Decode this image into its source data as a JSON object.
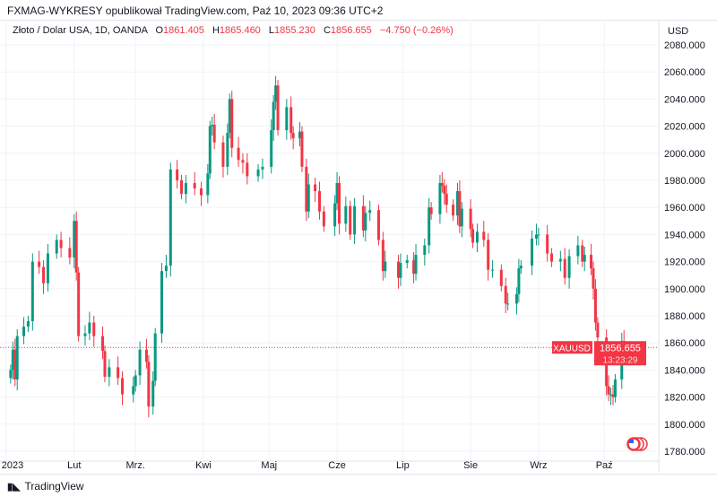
{
  "header": {
    "published": "FXMAG-WYKRESY opublikował TradingView.com, Paź 10, 2023 09:36 UTC+2"
  },
  "legend": {
    "symbol": "Złoto / Dolar USA, 1D, OANDA",
    "o_label": "O",
    "o": "1861.405",
    "h_label": "H",
    "h": "1865.460",
    "l_label": "L",
    "l": "1855.230",
    "c_label": "C",
    "c": "1856.655",
    "change": "−4.750 (−0.26%)"
  },
  "footer": {
    "brand": "TradingView"
  },
  "colors": {
    "up": "#089981",
    "down": "#f23645",
    "grid": "#f0f3fa",
    "text": "#131722"
  },
  "chart_data": {
    "type": "candlestick",
    "currency": "USD",
    "ylim": [
      1780,
      2080
    ],
    "yticks": [
      "2080.000",
      "2060.000",
      "2040.000",
      "2020.000",
      "2000.000",
      "1980.000",
      "1960.000",
      "1940.000",
      "1920.000",
      "1900.000",
      "1880.000",
      "1860.000",
      "1840.000",
      "1820.000",
      "1800.000",
      "1780.000"
    ],
    "xticks": [
      {
        "label": "2023",
        "date": "2023-01-01"
      },
      {
        "label": "Lut",
        "date": "2023-02-01"
      },
      {
        "label": "Mrz.",
        "date": "2023-03-01"
      },
      {
        "label": "Kwi",
        "date": "2023-04-01"
      },
      {
        "label": "Maj",
        "date": "2023-05-01"
      },
      {
        "label": "Cze",
        "date": "2023-06-01"
      },
      {
        "label": "Lip",
        "date": "2023-07-01"
      },
      {
        "label": "Sie",
        "date": "2023-08-01"
      },
      {
        "label": "Wrz",
        "date": "2023-09-01"
      },
      {
        "label": "Paź",
        "date": "2023-10-01"
      }
    ],
    "last_price": {
      "symbol": "XAUUSD",
      "price": "1856.655",
      "countdown": "13:23:29",
      "value": 1856.655
    },
    "closes": [
      [
        "2023-01-03",
        1840
      ],
      [
        "2023-01-04",
        1855
      ],
      [
        "2023-01-05",
        1833
      ],
      [
        "2023-01-06",
        1865
      ],
      [
        "2023-01-09",
        1872
      ],
      [
        "2023-01-11",
        1876
      ],
      [
        "2023-01-13",
        1920
      ],
      [
        "2023-01-16",
        1916
      ],
      [
        "2023-01-18",
        1904
      ],
      [
        "2023-01-20",
        1926
      ],
      [
        "2023-01-24",
        1936
      ],
      [
        "2023-01-26",
        1930
      ],
      [
        "2023-01-30",
        1923
      ],
      [
        "2023-02-01",
        1950
      ],
      [
        "2023-02-02",
        1912
      ],
      [
        "2023-02-03",
        1865
      ],
      [
        "2023-02-06",
        1867
      ],
      [
        "2023-02-08",
        1875
      ],
      [
        "2023-02-10",
        1865
      ],
      [
        "2023-02-14",
        1854
      ],
      [
        "2023-02-15",
        1835
      ],
      [
        "2023-02-17",
        1842
      ],
      [
        "2023-02-21",
        1834
      ],
      [
        "2023-02-23",
        1822
      ],
      [
        "2023-02-28",
        1828
      ],
      [
        "2023-03-01",
        1836
      ],
      [
        "2023-03-03",
        1855
      ],
      [
        "2023-03-06",
        1846
      ],
      [
        "2023-03-07",
        1813
      ],
      [
        "2023-03-09",
        1832
      ],
      [
        "2023-03-10",
        1867
      ],
      [
        "2023-03-13",
        1913
      ],
      [
        "2023-03-15",
        1917
      ],
      [
        "2023-03-17",
        1988
      ],
      [
        "2023-03-20",
        1980
      ],
      [
        "2023-03-22",
        1970
      ],
      [
        "2023-03-24",
        1978
      ],
      [
        "2023-03-28",
        1974
      ],
      [
        "2023-03-31",
        1969
      ],
      [
        "2023-04-03",
        1985
      ],
      [
        "2023-04-04",
        2020
      ],
      [
        "2023-04-05",
        2021
      ],
      [
        "2023-04-06",
        2008
      ],
      [
        "2023-04-10",
        1990
      ],
      [
        "2023-04-12",
        2015
      ],
      [
        "2023-04-13",
        2040
      ],
      [
        "2023-04-14",
        2004
      ],
      [
        "2023-04-17",
        1995
      ],
      [
        "2023-04-19",
        1993
      ],
      [
        "2023-04-21",
        1983
      ],
      [
        "2023-04-26",
        1988
      ],
      [
        "2023-04-28",
        1990
      ],
      [
        "2023-05-02",
        2017
      ],
      [
        "2023-05-03",
        2038
      ],
      [
        "2023-05-04",
        2050
      ],
      [
        "2023-05-05",
        2017
      ],
      [
        "2023-05-09",
        2034
      ],
      [
        "2023-05-11",
        2015
      ],
      [
        "2023-05-12",
        2011
      ],
      [
        "2023-05-15",
        2016
      ],
      [
        "2023-05-16",
        1990
      ],
      [
        "2023-05-18",
        1957
      ],
      [
        "2023-05-19",
        1977
      ],
      [
        "2023-05-22",
        1972
      ],
      [
        "2023-05-24",
        1957
      ],
      [
        "2023-05-26",
        1946
      ],
      [
        "2023-05-31",
        1963
      ],
      [
        "2023-06-01",
        1978
      ],
      [
        "2023-06-02",
        1948
      ],
      [
        "2023-06-05",
        1961
      ],
      [
        "2023-06-07",
        1940
      ],
      [
        "2023-06-09",
        1961
      ],
      [
        "2023-06-13",
        1943
      ],
      [
        "2023-06-14",
        1956
      ],
      [
        "2023-06-16",
        1958
      ],
      [
        "2023-06-20",
        1936
      ],
      [
        "2023-06-22",
        1913
      ],
      [
        "2023-06-23",
        1920
      ],
      [
        "2023-06-29",
        1908
      ],
      [
        "2023-06-30",
        1919
      ],
      [
        "2023-07-03",
        1921
      ],
      [
        "2023-07-06",
        1911
      ],
      [
        "2023-07-07",
        1925
      ],
      [
        "2023-07-11",
        1932
      ],
      [
        "2023-07-13",
        1960
      ],
      [
        "2023-07-14",
        1955
      ],
      [
        "2023-07-18",
        1978
      ],
      [
        "2023-07-19",
        1976
      ],
      [
        "2023-07-20",
        1970
      ],
      [
        "2023-07-21",
        1962
      ],
      [
        "2023-07-24",
        1954
      ],
      [
        "2023-07-26",
        1972
      ],
      [
        "2023-07-27",
        1946
      ],
      [
        "2023-07-28",
        1959
      ],
      [
        "2023-08-01",
        1944
      ],
      [
        "2023-08-02",
        1934
      ],
      [
        "2023-08-04",
        1942
      ],
      [
        "2023-08-07",
        1936
      ],
      [
        "2023-08-09",
        1914
      ],
      [
        "2023-08-11",
        1914
      ],
      [
        "2023-08-15",
        1902
      ],
      [
        "2023-08-17",
        1889
      ],
      [
        "2023-08-18",
        1889
      ],
      [
        "2023-08-22",
        1896
      ],
      [
        "2023-08-23",
        1915
      ],
      [
        "2023-08-24",
        1917
      ],
      [
        "2023-08-29",
        1937
      ],
      [
        "2023-08-31",
        1940
      ],
      [
        "2023-09-01",
        1940
      ],
      [
        "2023-09-05",
        1926
      ],
      [
        "2023-09-07",
        1920
      ],
      [
        "2023-09-11",
        1922
      ],
      [
        "2023-09-13",
        1908
      ],
      [
        "2023-09-15",
        1924
      ],
      [
        "2023-09-19",
        1932
      ],
      [
        "2023-09-21",
        1920
      ],
      [
        "2023-09-22",
        1925
      ],
      [
        "2023-09-25",
        1915
      ],
      [
        "2023-09-26",
        1900
      ],
      [
        "2023-09-27",
        1875
      ],
      [
        "2023-09-28",
        1864
      ],
      [
        "2023-10-02",
        1828
      ],
      [
        "2023-10-03",
        1822
      ],
      [
        "2023-10-04",
        1822
      ],
      [
        "2023-10-05",
        1820
      ],
      [
        "2023-10-06",
        1833
      ],
      [
        "2023-10-09",
        1861.405
      ],
      [
        "2023-10-10",
        1856.655
      ]
    ]
  }
}
